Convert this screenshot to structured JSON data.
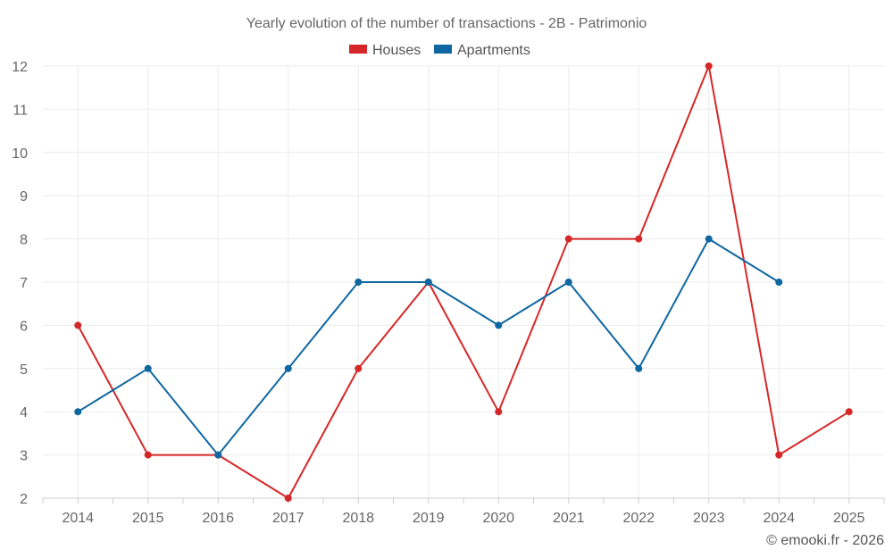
{
  "chart_data": {
    "type": "line",
    "title": "Yearly evolution of the number of transactions - 2B - Patrimonio",
    "categories": [
      "2014",
      "2015",
      "2016",
      "2017",
      "2018",
      "2019",
      "2020",
      "2021",
      "2022",
      "2023",
      "2024",
      "2025"
    ],
    "series": [
      {
        "name": "Houses",
        "color": "#d62728",
        "values": [
          6,
          3,
          3,
          2,
          5,
          7,
          4,
          8,
          8,
          12,
          3,
          4
        ]
      },
      {
        "name": "Apartments",
        "color": "#0e67a0",
        "values": [
          4,
          5,
          3,
          5,
          7,
          7,
          6,
          7,
          5,
          8,
          7,
          null
        ]
      }
    ],
    "ylim": [
      2,
      12
    ],
    "yticks": [
      2,
      3,
      4,
      5,
      6,
      7,
      8,
      9,
      10,
      11,
      12
    ],
    "grid": true,
    "legend": "top-center",
    "xlabel": "",
    "ylabel": ""
  },
  "credit": "© emooki.fr - 2026"
}
